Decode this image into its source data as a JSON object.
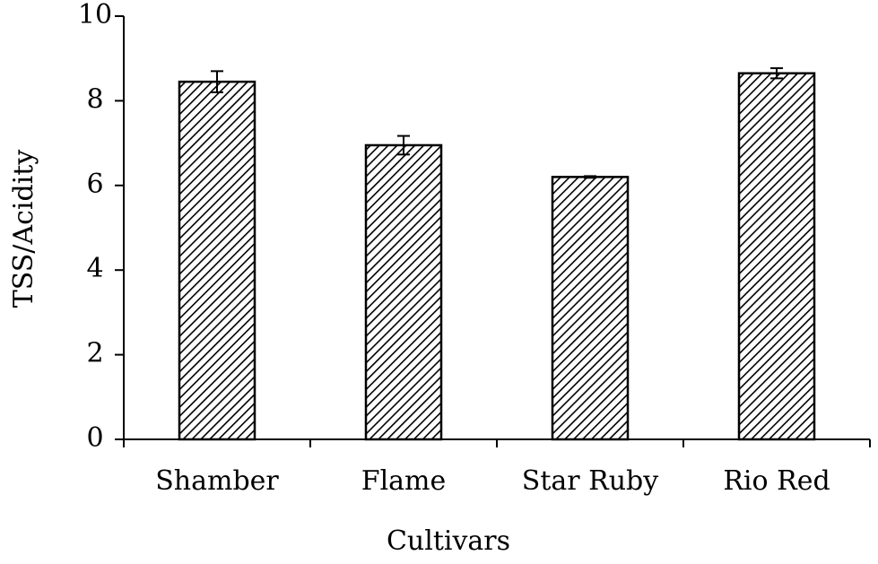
{
  "chart_data": {
    "type": "bar",
    "x_label": "Cultivars",
    "y_label": "TSS/Acidity",
    "categories": [
      "Shamber",
      "Flame",
      "Star Ruby",
      "Rio Red"
    ],
    "values": [
      8.45,
      6.95,
      6.2,
      8.65
    ],
    "errors": [
      0.25,
      0.22,
      0.02,
      0.12
    ],
    "color": "#000000",
    "ylim": [
      0,
      10
    ],
    "yticks": [
      0,
      2,
      4,
      6,
      8,
      10
    ],
    "grid": false
  }
}
